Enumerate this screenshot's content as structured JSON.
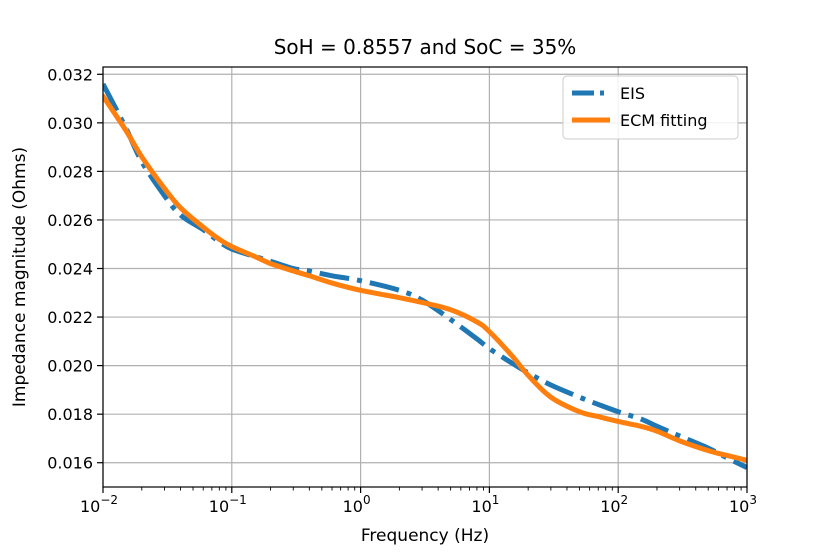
{
  "chart_data": {
    "type": "line",
    "title": "SoH = 0.8557 and SoC = 35%",
    "xlabel": "Frequency (Hz)",
    "ylabel": "Impedance magnitude (Ohms)",
    "xscale": "log",
    "xlim": [
      0.01,
      1000
    ],
    "ylim": [
      0.015,
      0.0323
    ],
    "xticks": [
      {
        "value": 0.01,
        "base": "10",
        "exp": "−2"
      },
      {
        "value": 0.1,
        "base": "10",
        "exp": "−1"
      },
      {
        "value": 1,
        "base": "10",
        "exp": "0"
      },
      {
        "value": 10,
        "base": "10",
        "exp": "1"
      },
      {
        "value": 100,
        "base": "10",
        "exp": "2"
      },
      {
        "value": 1000,
        "base": "10",
        "exp": "3"
      }
    ],
    "yticks": [
      "0.016",
      "0.018",
      "0.020",
      "0.022",
      "0.024",
      "0.026",
      "0.028",
      "0.030",
      "0.032"
    ],
    "grid": true,
    "legend_position": "top-right",
    "series": [
      {
        "name": "EIS",
        "color": "#1f77b4",
        "style": "dashdot",
        "x": [
          0.01,
          0.015,
          0.02,
          0.03,
          0.04,
          0.06,
          0.08,
          0.1,
          0.15,
          0.2,
          0.3,
          0.4,
          0.6,
          1,
          2,
          3,
          5,
          8,
          10,
          15,
          20,
          30,
          50,
          70,
          100,
          150,
          200,
          300,
          500,
          700,
          1000
        ],
        "y": [
          0.0316,
          0.0298,
          0.0284,
          0.027,
          0.0262,
          0.0256,
          0.0251,
          0.0248,
          0.0245,
          0.0243,
          0.024,
          0.0239,
          0.0237,
          0.0235,
          0.0231,
          0.0227,
          0.0219,
          0.0211,
          0.0207,
          0.0201,
          0.0197,
          0.0192,
          0.0187,
          0.0184,
          0.0181,
          0.0178,
          0.0175,
          0.0171,
          0.0166,
          0.0162,
          0.0158
        ]
      },
      {
        "name": "ECM fitting",
        "color": "#ff7f0e",
        "style": "solid",
        "x": [
          0.01,
          0.015,
          0.02,
          0.03,
          0.04,
          0.06,
          0.08,
          0.1,
          0.15,
          0.2,
          0.3,
          0.4,
          0.6,
          1,
          2,
          3,
          5,
          8,
          10,
          15,
          20,
          30,
          50,
          70,
          100,
          150,
          200,
          300,
          500,
          700,
          1000
        ],
        "y": [
          0.0311,
          0.0297,
          0.0286,
          0.0273,
          0.0265,
          0.0257,
          0.0252,
          0.0249,
          0.0245,
          0.0242,
          0.0239,
          0.0237,
          0.0234,
          0.0231,
          0.0228,
          0.0226,
          0.0223,
          0.0218,
          0.0214,
          0.0204,
          0.0196,
          0.0187,
          0.0181,
          0.0179,
          0.0177,
          0.0175,
          0.0173,
          0.0169,
          0.0165,
          0.0163,
          0.0161
        ]
      }
    ]
  }
}
